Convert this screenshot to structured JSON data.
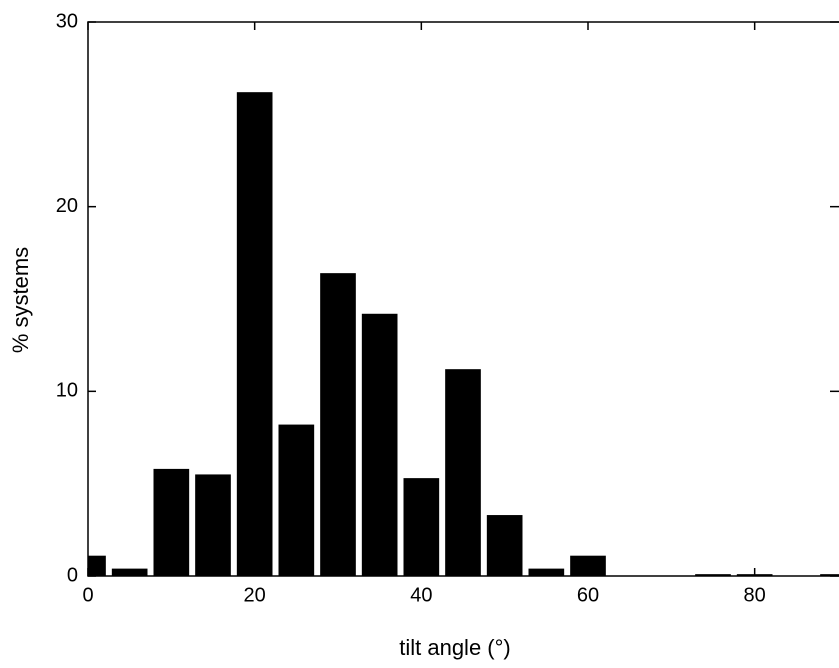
{
  "chart_data": {
    "type": "histogram",
    "x_label": "tilt angle (°)",
    "y_label": "% systems",
    "bins": [
      -2.5,
      2.5,
      7.5,
      12.5,
      17.5,
      22.5,
      27.5,
      32.5,
      37.5,
      42.5,
      47.5,
      52.5,
      57.5,
      62.5,
      67.5,
      72.5,
      77.5,
      82.5,
      87.5,
      92.5
    ],
    "values": [
      1.1,
      0.4,
      5.8,
      5.5,
      26.2,
      8.2,
      16.4,
      14.2,
      5.3,
      11.2,
      3.3,
      0.4,
      1.1,
      0,
      0,
      0.1,
      0.1,
      0,
      0.1
    ],
    "color": "#000000",
    "xlim": [
      0,
      90
    ],
    "xticks": [
      0,
      20,
      40,
      60,
      80
    ],
    "ylim": [
      0,
      30
    ],
    "yticks": [
      0,
      10,
      20,
      30
    ]
  }
}
